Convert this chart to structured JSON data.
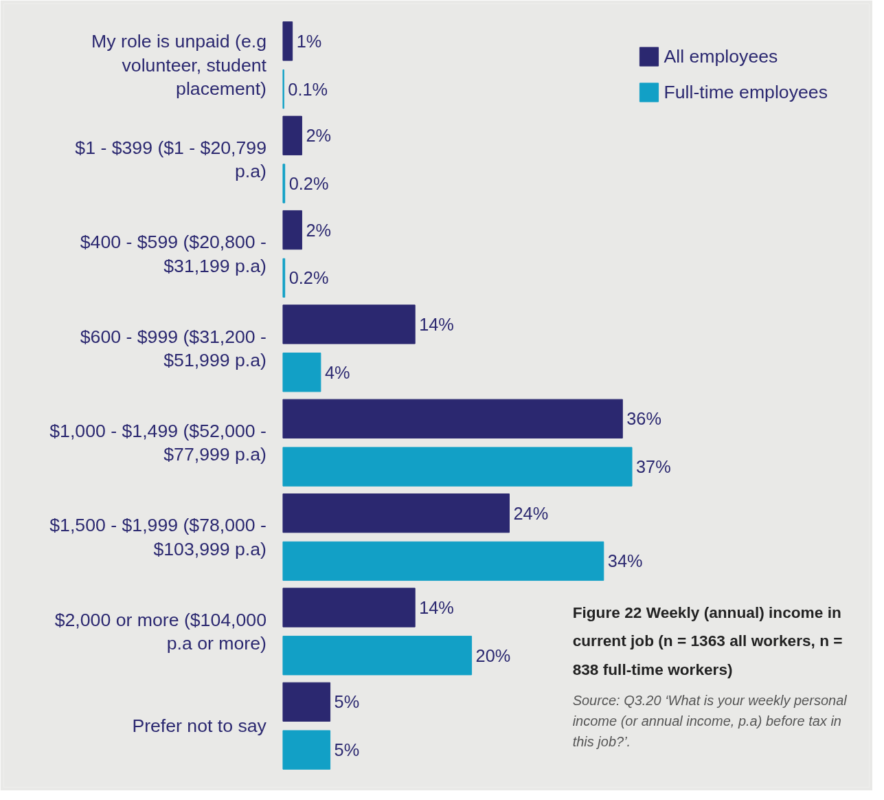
{
  "chart_data": {
    "type": "bar",
    "orientation": "horizontal",
    "title": "Figure 22 Weekly (annual) income in current job (n = 1363 all workers, n = 838 full-time workers)",
    "categories": [
      "My role is unpaid (e.g volunteer, student placement)",
      "$1 - $399 ($1 - $20,799 p.a)",
      "$400 - $599 ($20,800 - $31,199 p.a)",
      "$600 - $999 ($31,200 - $51,999 p.a)",
      "$1,000 - $1,499 ($52,000 - $77,999 p.a)",
      "$1,500 - $1,999 ($78,000 - $103,999 p.a)",
      "$2,000 or more ($104,000 p.a or more)",
      "Prefer not to say"
    ],
    "series": [
      {
        "name": "All employees",
        "color": "#2b2870",
        "values": [
          1,
          2,
          2,
          14,
          36,
          24,
          14,
          5
        ],
        "value_labels": [
          "1%",
          "2%",
          "2%",
          "14%",
          "36%",
          "24%",
          "14%",
          "5%"
        ]
      },
      {
        "name": "Full-time employees",
        "color": "#12a0c6",
        "values": [
          0.1,
          0.2,
          0.2,
          4,
          37,
          34,
          20,
          5
        ],
        "value_labels": [
          "0.1%",
          "0.2%",
          "0.2%",
          "4%",
          "37%",
          "34%",
          "20%",
          "5%"
        ]
      }
    ],
    "annotations": [
      "Source: Q3.20 ‘What is your weekly personal income (or annual income, p.a) before tax in this job?’."
    ],
    "legend": "top right",
    "tick_labels": "y"
  }
}
